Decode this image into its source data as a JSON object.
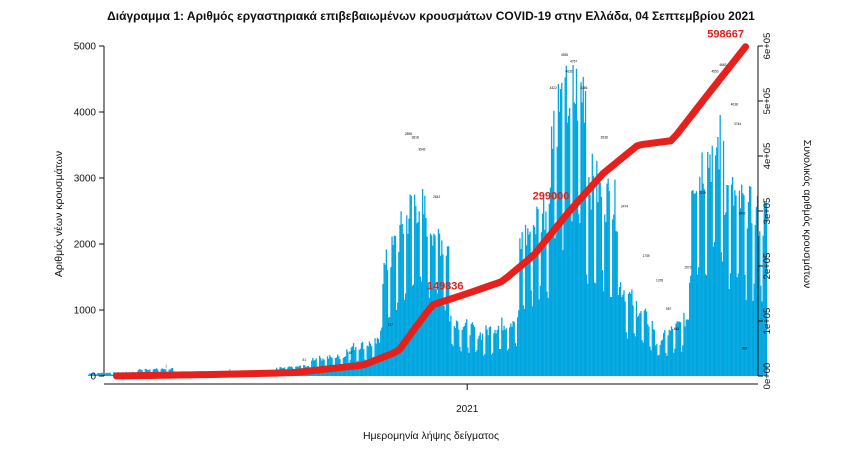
{
  "chart_data": {
    "type": "bar",
    "title": "Διάγραμμα 1: Αριθμός εργαστηριακά επιβεβαιωμένων κρουσμάτων COVID-19 στην Ελλάδα, 04 Σεπτεμβρίου 2021",
    "xlabel": "Ημερομηνία λήψης δείγματος",
    "ylabel": "Αριθμός νέων κρουσμάτων",
    "y2label": "Συνολικός αριθμός κρουσμάτων",
    "ylim": [
      0,
      5000
    ],
    "y2lim": [
      0,
      600000
    ],
    "yticks": [
      "0",
      "1000",
      "2000",
      "3000",
      "4000",
      "5000"
    ],
    "y2ticks": [
      "0e+00",
      "1e+05",
      "2e+05",
      "3e+05",
      "4e+05",
      "5e+05",
      "6e+05"
    ],
    "xtick_labels": [
      "2021"
    ],
    "grid": false,
    "colors": {
      "bars": "#00a6e0",
      "cumulative": "#e8201c",
      "callout": "#e0201a"
    },
    "series": [
      {
        "type": "bar",
        "axis": "left",
        "weeks": [
          "2020-02",
          "2020-03",
          "2020-03",
          "2020-04",
          "2020-04",
          "2020-05",
          "2020-05",
          "2020-06",
          "2020-06",
          "2020-07",
          "2020-07",
          "2020-08",
          "2020-08",
          "2020-09",
          "2020-09",
          "2020-10",
          "2020-10",
          "2020-11",
          "2020-11",
          "2020-12",
          "2020-12",
          "2021-01",
          "2021-01",
          "2021-02",
          "2021-02",
          "2021-03",
          "2021-03",
          "2021-04",
          "2021-04",
          "2021-05",
          "2021-05",
          "2021-06",
          "2021-06",
          "2021-07",
          "2021-07",
          "2021-08",
          "2021-08",
          "2021-09"
        ],
        "values": [
          40,
          60,
          90,
          110,
          70,
          45,
          35,
          30,
          40,
          60,
          90,
          160,
          240,
          300,
          380,
          520,
          900,
          2700,
          3050,
          1900,
          1050,
          600,
          560,
          900,
          1600,
          2700,
          3800,
          4400,
          3300,
          2500,
          1700,
          700,
          300,
          900,
          2700,
          3600,
          3000,
          2400
        ]
      },
      {
        "type": "line",
        "axis": "right",
        "x": [
          "2020-02-26",
          "2020-06-01",
          "2020-08-01",
          "2020-10-01",
          "2020-11-01",
          "2020-12-01",
          "2021-01-01",
          "2021-02-01",
          "2021-03-01",
          "2021-04-01",
          "2021-05-01",
          "2021-06-01",
          "2021-07-01",
          "2021-08-01",
          "2021-09-04"
        ],
        "values": [
          0,
          3100,
          6200,
          19800,
          45000,
          129000,
          149836,
          172000,
          220000,
          299000,
          368000,
          420000,
          428000,
          510000,
          598667
        ]
      }
    ],
    "annotations": [
      {
        "text": "149836",
        "x": "2021-01-01",
        "y": 149836
      },
      {
        "text": "299000",
        "x": "2021-04-01",
        "y": 299000
      },
      {
        "text": "598667",
        "x": "2021-09-04",
        "y": 598667
      }
    ],
    "bar_mini_labels": [
      "7",
      "7",
      "51",
      "87",
      "737",
      "2898",
      "3618",
      "3542",
      "2642",
      "4322",
      "4935",
      "4767",
      "4386",
      "4632",
      "3538",
      "2474",
      "1739",
      "1378",
      "1573",
      "4553",
      "4663",
      "4038",
      "3744",
      "2709",
      "2402",
      "957",
      "645",
      "358"
    ]
  }
}
